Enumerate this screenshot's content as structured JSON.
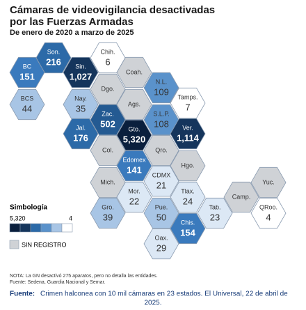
{
  "chart_data": {
    "type": "hexmap",
    "title": [
      "Cámaras de videovigilancia desactivadas",
      "por las Fuerzas Armadas"
    ],
    "subtitle": "De enero de 2020 a marzo de 2025",
    "regions": [
      {
        "label": "Son.",
        "value": 216,
        "color": "#2c6aa8"
      },
      {
        "label": "Chih.",
        "value": 6,
        "color": "#ffffff"
      },
      {
        "label": "BC",
        "value": 151,
        "color": "#3a7abd"
      },
      {
        "label": "Sin.",
        "value": 1027,
        "value_label": "1,027",
        "color": "#15355c"
      },
      {
        "label": "Coah.",
        "value": null,
        "color": "#cfd2d6"
      },
      {
        "label": "N.L.",
        "value": 109,
        "color": "#5a92cb"
      },
      {
        "label": "Dgo.",
        "value": null,
        "color": "#cfd2d6"
      },
      {
        "label": "BCS",
        "value": 44,
        "color": "#a8c5e5"
      },
      {
        "label": "Nay.",
        "value": 35,
        "color": "#a8c5e5"
      },
      {
        "label": "Ags.",
        "value": null,
        "color": "#cfd2d6"
      },
      {
        "label": "Tamps.",
        "value": 7,
        "color": "#ffffff"
      },
      {
        "label": "Zac.",
        "value": 502,
        "color": "#245a92"
      },
      {
        "label": "S.L.P.",
        "value": 108,
        "color": "#5a92cb"
      },
      {
        "label": "Jal.",
        "value": 176,
        "color": "#2c6aa8"
      },
      {
        "label": "Gto.",
        "value": 5320,
        "value_label": "5,320",
        "color": "#0a1f3d"
      },
      {
        "label": "Ver.",
        "value": 1114,
        "value_label": "1,114",
        "color": "#15355c"
      },
      {
        "label": "Col.",
        "value": null,
        "color": "#cfd2d6"
      },
      {
        "label": "Qro.",
        "value": null,
        "color": "#cfd2d6"
      },
      {
        "label": "Edomex",
        "value": 141,
        "color": "#3a7abd"
      },
      {
        "label": "Hgo.",
        "value": null,
        "color": "#cfd2d6"
      },
      {
        "label": "Mich.",
        "value": null,
        "color": "#cfd2d6"
      },
      {
        "label": "CDMX",
        "value": 21,
        "color": "#dce8f5"
      },
      {
        "label": "Mor.",
        "value": 22,
        "color": "#dce8f5"
      },
      {
        "label": "Tlax.",
        "value": 24,
        "color": "#dce8f5"
      },
      {
        "label": "Gro.",
        "value": 39,
        "color": "#a8c5e5"
      },
      {
        "label": "Pue.",
        "value": 50,
        "color": "#a8c5e5"
      },
      {
        "label": "Tab.",
        "value": 23,
        "color": "#dce8f5"
      },
      {
        "label": "Camp.",
        "value": null,
        "color": "#cfd2d6"
      },
      {
        "label": "Yuc.",
        "value": null,
        "color": "#cfd2d6"
      },
      {
        "label": "QRoo.",
        "value": 4,
        "color": "#ffffff"
      },
      {
        "label": "Chis.",
        "value": 154,
        "color": "#3a7abd"
      },
      {
        "label": "Oax.",
        "value": 29,
        "color": "#dce8f5"
      }
    ],
    "legend": {
      "title": "Simbología",
      "max": {
        "value": 5320,
        "label": "5,320"
      },
      "min": 4,
      "colors": [
        "#0a1f3d",
        "#15355c",
        "#2c6aa8",
        "#5a92cb",
        "#a8c5e5",
        "#ffffff"
      ],
      "no_data": {
        "label": "SIN REGISTRO",
        "color": "#cfd2d6"
      }
    },
    "notes": [
      "NOTA: La GN desactivó 275 aparatos, pero no detalla las entidades.",
      "Fuente: Sedena, Guardia Nacional y Semar."
    ],
    "caption": {
      "prefix": "Fuente:",
      "text": "Crimen halconea con 10 mil cámaras en 23 estados. El Universal, 22 de abril de",
      "text2": "2025."
    }
  }
}
